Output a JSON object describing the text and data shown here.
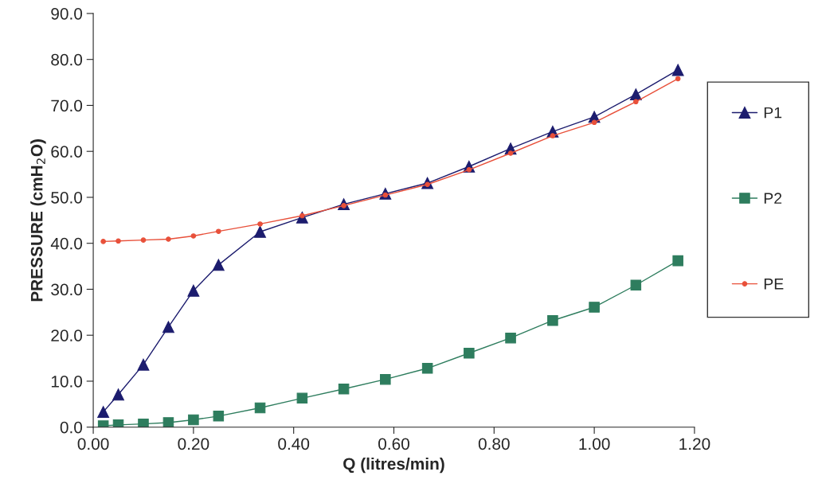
{
  "chart_data": {
    "type": "line",
    "xlabel": "Q (litres/min)",
    "ylabel": "PRESSURE (cmH$_{2}$O)",
    "x": [
      0.02,
      0.05,
      0.1,
      0.15,
      0.2,
      0.25,
      0.333,
      0.417,
      0.5,
      0.583,
      0.667,
      0.75,
      0.833,
      0.917,
      1.0,
      1.083,
      1.167
    ],
    "series": [
      {
        "name": "P1",
        "color": "#1c1c6e",
        "marker": "triangle",
        "values": [
          3.3,
          7.1,
          13.6,
          21.8,
          29.7,
          35.3,
          42.5,
          45.6,
          48.5,
          50.8,
          53.1,
          56.7,
          60.6,
          64.3,
          67.5,
          72.4,
          77.7
        ]
      },
      {
        "name": "P2",
        "color": "#2e7d5e",
        "marker": "square",
        "values": [
          0.3,
          0.5,
          0.7,
          1.0,
          1.6,
          2.4,
          4.2,
          6.3,
          8.3,
          10.4,
          12.8,
          16.1,
          19.4,
          23.2,
          26.1,
          30.9,
          36.2
        ]
      },
      {
        "name": "PE",
        "color": "#e8503a",
        "marker": "circle",
        "values": [
          40.4,
          40.5,
          40.7,
          40.9,
          41.6,
          42.6,
          44.2,
          46.0,
          48.2,
          50.5,
          52.8,
          56.0,
          59.6,
          63.4,
          66.3,
          70.8,
          75.8
        ]
      }
    ],
    "xlim": [
      0,
      1.2
    ],
    "xticks": [
      {
        "value": 0,
        "label": "0.00"
      },
      {
        "value": 0.2,
        "label": "0.20"
      },
      {
        "value": 0.4,
        "label": "0.40"
      },
      {
        "value": 0.6,
        "label": "0.60"
      },
      {
        "value": 0.8,
        "label": "0.80"
      },
      {
        "value": 1.0,
        "label": "1.00"
      },
      {
        "value": 1.2,
        "label": "1.20"
      }
    ],
    "ylim": [
      0,
      90
    ],
    "yticks": [
      {
        "value": 0,
        "label": "0.0"
      },
      {
        "value": 10,
        "label": "10.0"
      },
      {
        "value": 20,
        "label": "20.0"
      },
      {
        "value": 30,
        "label": "30.0"
      },
      {
        "value": 40,
        "label": "40.0"
      },
      {
        "value": 50,
        "label": "50.0"
      },
      {
        "value": 60,
        "label": "60.0"
      },
      {
        "value": 70,
        "label": "70.0"
      },
      {
        "value": 80,
        "label": "80.0"
      },
      {
        "value": 90,
        "label": "90.0"
      }
    ],
    "grid": false,
    "legend": "right",
    "line_style": "solid"
  }
}
